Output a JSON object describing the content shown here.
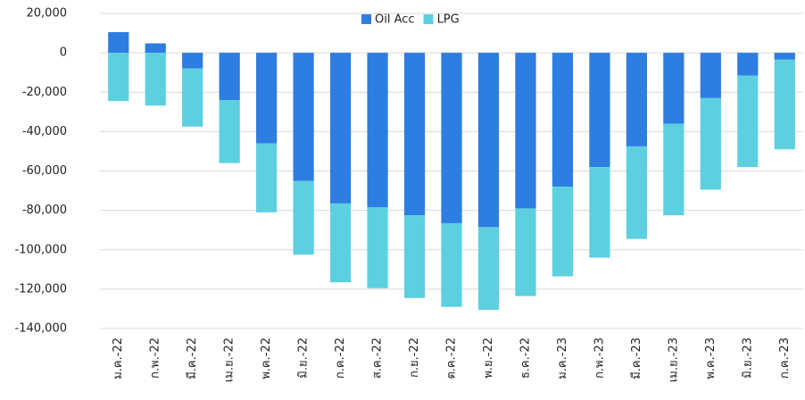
{
  "chart_data": {
    "type": "stacked_bar",
    "categories": [
      "ม.ค.-22",
      "ก.พ.-22",
      "มี.ค.-22",
      "เม.ย.-22",
      "พ.ค.-22",
      "มิ.ย.-22",
      "ก.ค.-22",
      "ส.ค.-22",
      "ก.ย.-22",
      "ต.ค.-22",
      "พ.ย.-22",
      "ธ.ค.-22",
      "ม.ค.-23",
      "ก.พ.-23",
      "มี.ค.-23",
      "เม.ย.-23",
      "พ.ค.-23",
      "มิ.ย.-23",
      "ก.ค.-23"
    ],
    "series": [
      {
        "name": "Oil Acc",
        "color": "#2e7de1",
        "values": [
          10500,
          4800,
          -8000,
          -24000,
          -46000,
          -65000,
          -76500,
          -78500,
          -82500,
          -86500,
          -88500,
          -79000,
          -68000,
          -58000,
          -47500,
          -36000,
          -23000,
          -11500,
          -3500
        ]
      },
      {
        "name": "LPG",
        "color": "#5dd0e0",
        "values": [
          -24500,
          -26800,
          -29500,
          -32000,
          -35000,
          -37500,
          -40000,
          -41000,
          -42000,
          -42500,
          -42000,
          -44500,
          -45500,
          -46000,
          -47000,
          -46500,
          -46500,
          -46500,
          -45500
        ]
      }
    ],
    "ylim": [
      -140000,
      20000
    ],
    "yticks": [
      {
        "value": 20000,
        "label": "20,000"
      },
      0,
      {
        "value": -20000,
        "label": "-20,000"
      },
      {
        "value": -40000,
        "label": "-40,000"
      },
      {
        "value": -60000,
        "label": "-60,000"
      },
      {
        "value": -80000,
        "label": "-80,000"
      },
      {
        "value": -100000,
        "label": "-100,000"
      },
      {
        "value": -120000,
        "label": "-120,000"
      },
      {
        "value": -140000,
        "label": "-140,000"
      }
    ],
    "grid": true,
    "legend": "top"
  }
}
